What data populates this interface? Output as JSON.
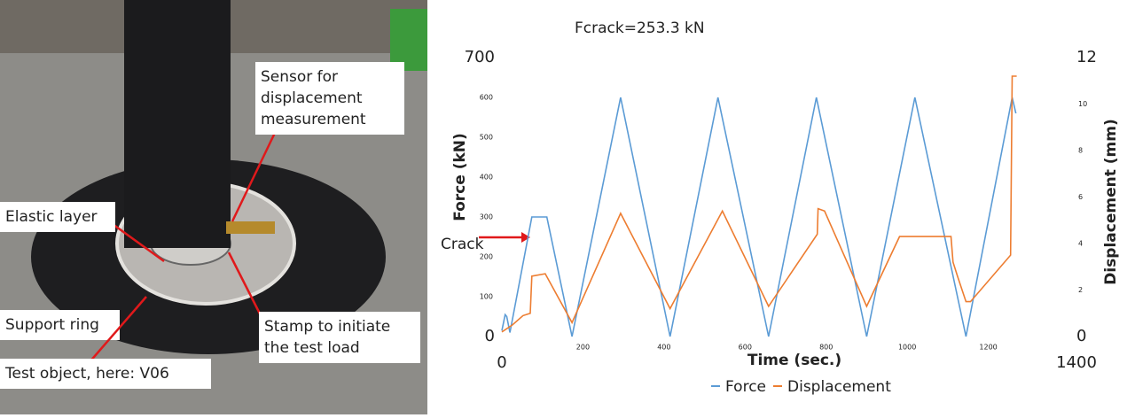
{
  "photo": {
    "labels": {
      "sensor": [
        "Sensor for",
        "displacement",
        "measurement"
      ],
      "elastic": [
        "Elastic layer"
      ],
      "support": [
        "Support ring"
      ],
      "stamp": [
        "Stamp to initiate",
        "the test load"
      ],
      "object": [
        "Test object, here: V06"
      ]
    }
  },
  "chart_data": {
    "type": "line",
    "title": "Fcrack=253.3 kN",
    "x_label": "Time (sec.)",
    "y_label": "Force (kN)",
    "y2_label": "Displacement (mm)",
    "annotation": "Crack",
    "xlim": [
      0,
      1400
    ],
    "xticks": [
      0,
      200,
      400,
      600,
      800,
      1000,
      1200,
      1400
    ],
    "ylim": [
      0,
      700
    ],
    "yticks": [
      0,
      100,
      200,
      300,
      400,
      500,
      600,
      700
    ],
    "y2lim": [
      0,
      12
    ],
    "y2ticks": [
      0,
      2,
      4,
      6,
      8,
      10,
      12
    ],
    "grid": false,
    "legend": "bottom",
    "series": [
      {
        "name": "Force",
        "color": "#5b9bd5",
        "x": [
          0,
          8,
          12,
          20,
          74,
          111,
          173,
          293,
          415,
          533,
          658,
          776,
          900,
          1019,
          1145,
          1259,
          1268
        ],
        "values": [
          15,
          55,
          50,
          10,
          300,
          300,
          0,
          600,
          0,
          600,
          0,
          600,
          0,
          600,
          0,
          600,
          560
        ]
      },
      {
        "name": "Displacement",
        "color": "#ed7d31",
        "axis": "y2",
        "x": [
          0,
          26,
          52,
          70,
          74,
          107,
          173,
          293,
          415,
          544,
          658,
          778,
          780,
          796,
          900,
          981,
          1108,
          1113,
          1124,
          1145,
          1156,
          1255,
          1259,
          1270
        ],
        "values": [
          0.2,
          0.5,
          0.9,
          1.0,
          2.6,
          2.7,
          0.6,
          5.3,
          1.2,
          5.4,
          1.3,
          4.4,
          5.5,
          5.4,
          1.3,
          4.3,
          4.3,
          3.2,
          2.6,
          1.5,
          1.5,
          3.5,
          11.2,
          11.2
        ]
      }
    ]
  }
}
